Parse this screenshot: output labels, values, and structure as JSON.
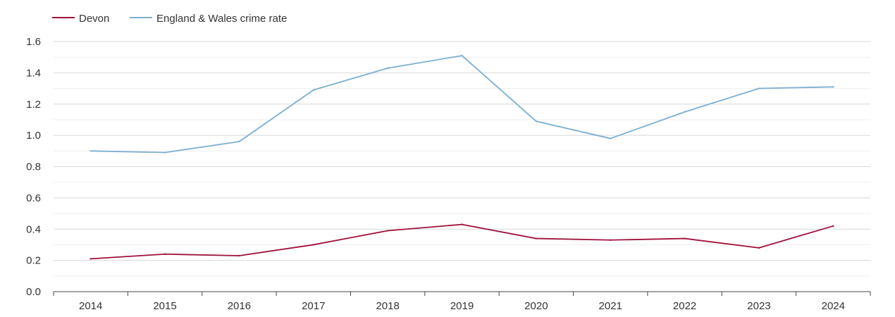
{
  "chart_data": {
    "type": "line",
    "x": [
      "2014",
      "2015",
      "2016",
      "2017",
      "2018",
      "2019",
      "2020",
      "2021",
      "2022",
      "2023",
      "2024"
    ],
    "series": [
      {
        "name": "Devon",
        "color": "#a0123b",
        "values": [
          0.21,
          0.24,
          0.23,
          0.3,
          0.39,
          0.43,
          0.34,
          0.33,
          0.34,
          0.28,
          0.42
        ]
      },
      {
        "name": "England & Wales crime rate",
        "color": "#7bafd4",
        "values": [
          0.9,
          0.89,
          0.96,
          1.29,
          1.43,
          1.51,
          1.09,
          0.98,
          1.15,
          1.3,
          1.31
        ]
      }
    ],
    "ylim": [
      0,
      1.6
    ],
    "yticks": [
      "0.0",
      "0.2",
      "0.4",
      "0.6",
      "0.8",
      "1.0",
      "1.2",
      "1.4",
      "1.6"
    ],
    "grid": true,
    "legend": "top-left"
  }
}
